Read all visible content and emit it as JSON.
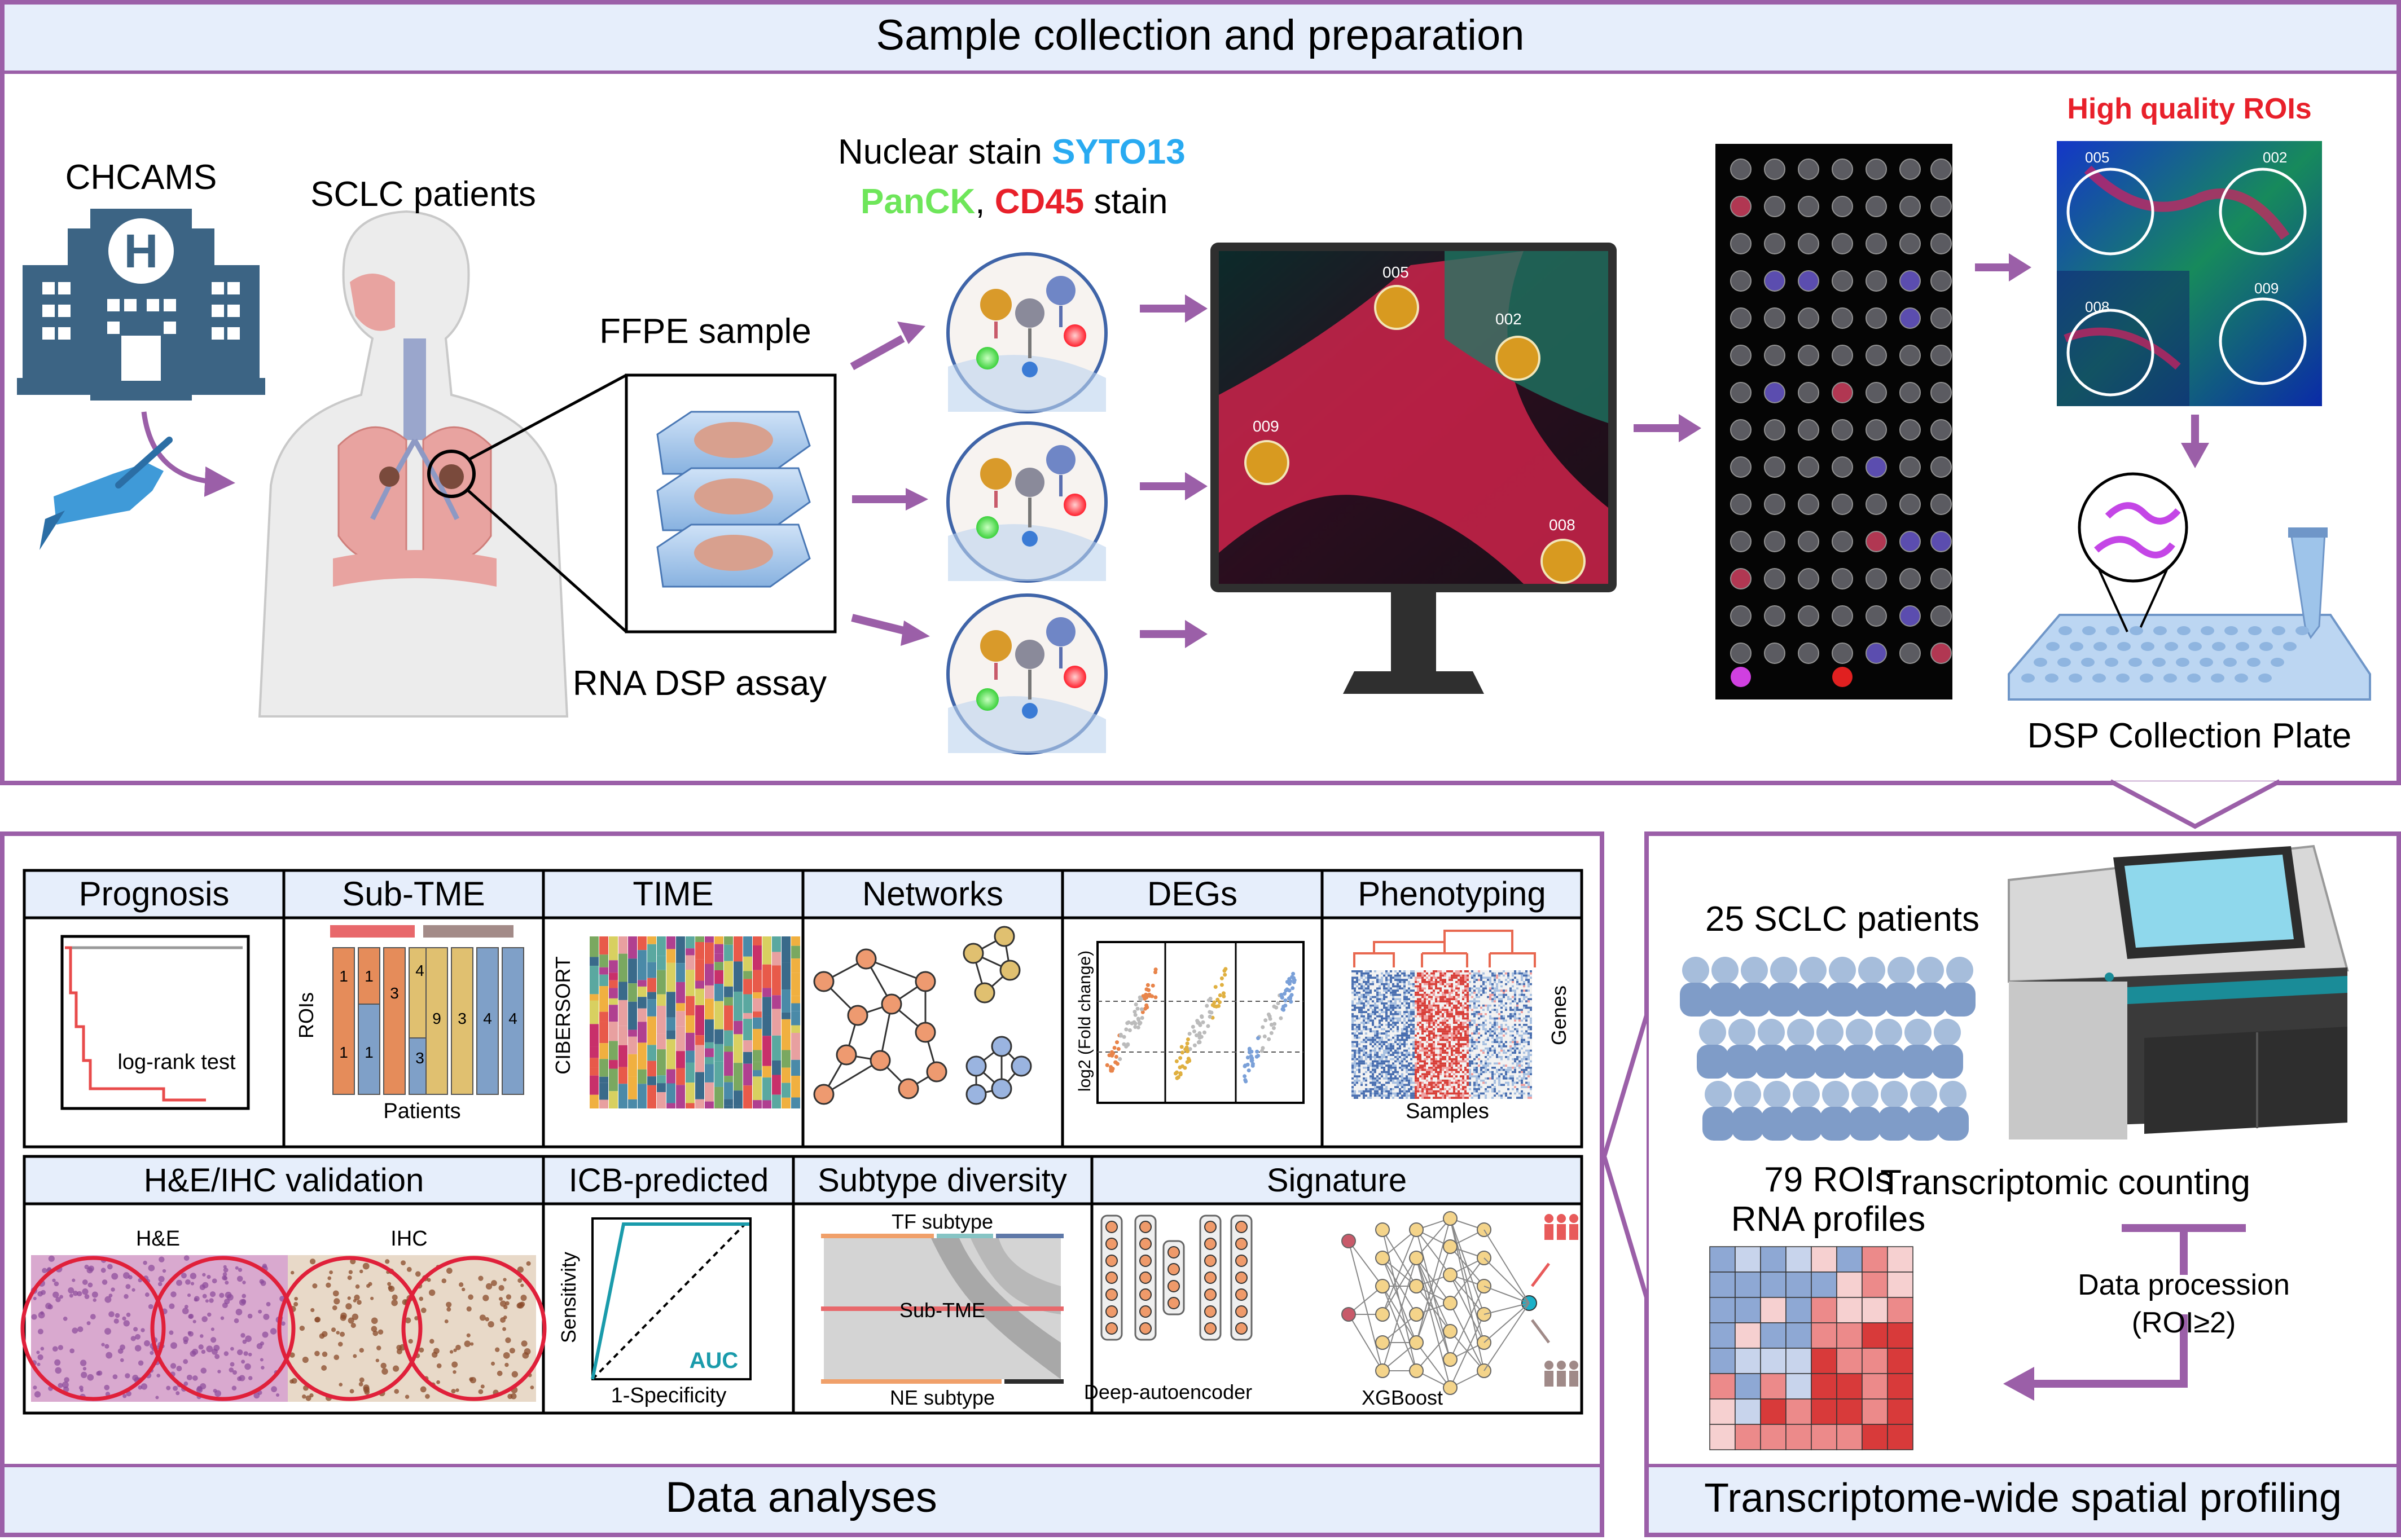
{
  "top": {
    "title": "Sample collection and preparation",
    "chcams": "CHCAMS",
    "hospital_letter": "H",
    "patients": "SCLC patients",
    "ffpe": "FFPE sample",
    "rna_assay": "RNA DSP assay",
    "stain_line1_a": "Nuclear stain ",
    "stain_line1_b": "SYTO13",
    "stain_line2_a": "PanCK",
    "stain_line2_b": ", ",
    "stain_line2_c": "CD45",
    "stain_line2_d": " stain",
    "monitor_rois": [
      "005",
      "002",
      "009",
      "008"
    ],
    "hq_rois": "High quality ROIs",
    "hq_roi_labels": [
      "005",
      "002",
      "008",
      "009"
    ],
    "plate": "DSP Collection Plate"
  },
  "right": {
    "title": "Transcriptome-wide spatial profiling",
    "patients": "25 SCLC patients",
    "rois_line1": "79 ROIs",
    "rois_line2": "RNA profiles",
    "counting": "Transcriptomic counting",
    "proc_line1": "Data procession",
    "proc_line2": "(ROI≥2)"
  },
  "analyses": {
    "title": "Data analyses",
    "row1": [
      "Prognosis",
      "Sub-TME",
      "TIME",
      "Networks",
      "DEGs",
      "Phenotyping"
    ],
    "row2": [
      "H&E/IHC validation",
      "ICB-predicted",
      "Subtype diversity",
      "Signature"
    ],
    "prognosis_test": "log-rank test",
    "subtme_ylabel": "ROIs",
    "subtme_xlabel": "Patients",
    "subtme_bar_numbers": [
      "1",
      "1",
      "3",
      "4",
      "1",
      "1",
      "3",
      "9",
      "3",
      "4",
      "4"
    ],
    "time_ylabel": "CIBERSORT",
    "degs_ylabel": "log2 (Fold change)",
    "pheno_ylabel": "Genes",
    "pheno_xlabel": "Samples",
    "he_label": "H&E",
    "ihc_label": "IHC",
    "roc_ylabel": "Sensitivity",
    "roc_xlabel": "1-Specificity",
    "roc_auc": "AUC",
    "subtype_top": "TF subtype",
    "subtype_mid": "Sub-TME",
    "subtype_bottom": "NE subtype",
    "sig_left": "Deep-autoencoder",
    "sig_right": "XGBoost"
  },
  "colors": {
    "frame": "#9b5fa8",
    "header_fill": "#e6eefb",
    "hospital": "#3c6484",
    "arrow": "#9b5fa8",
    "syto13": "#29aaf1",
    "panck": "#6ee65a",
    "cd45": "#e8202a"
  }
}
